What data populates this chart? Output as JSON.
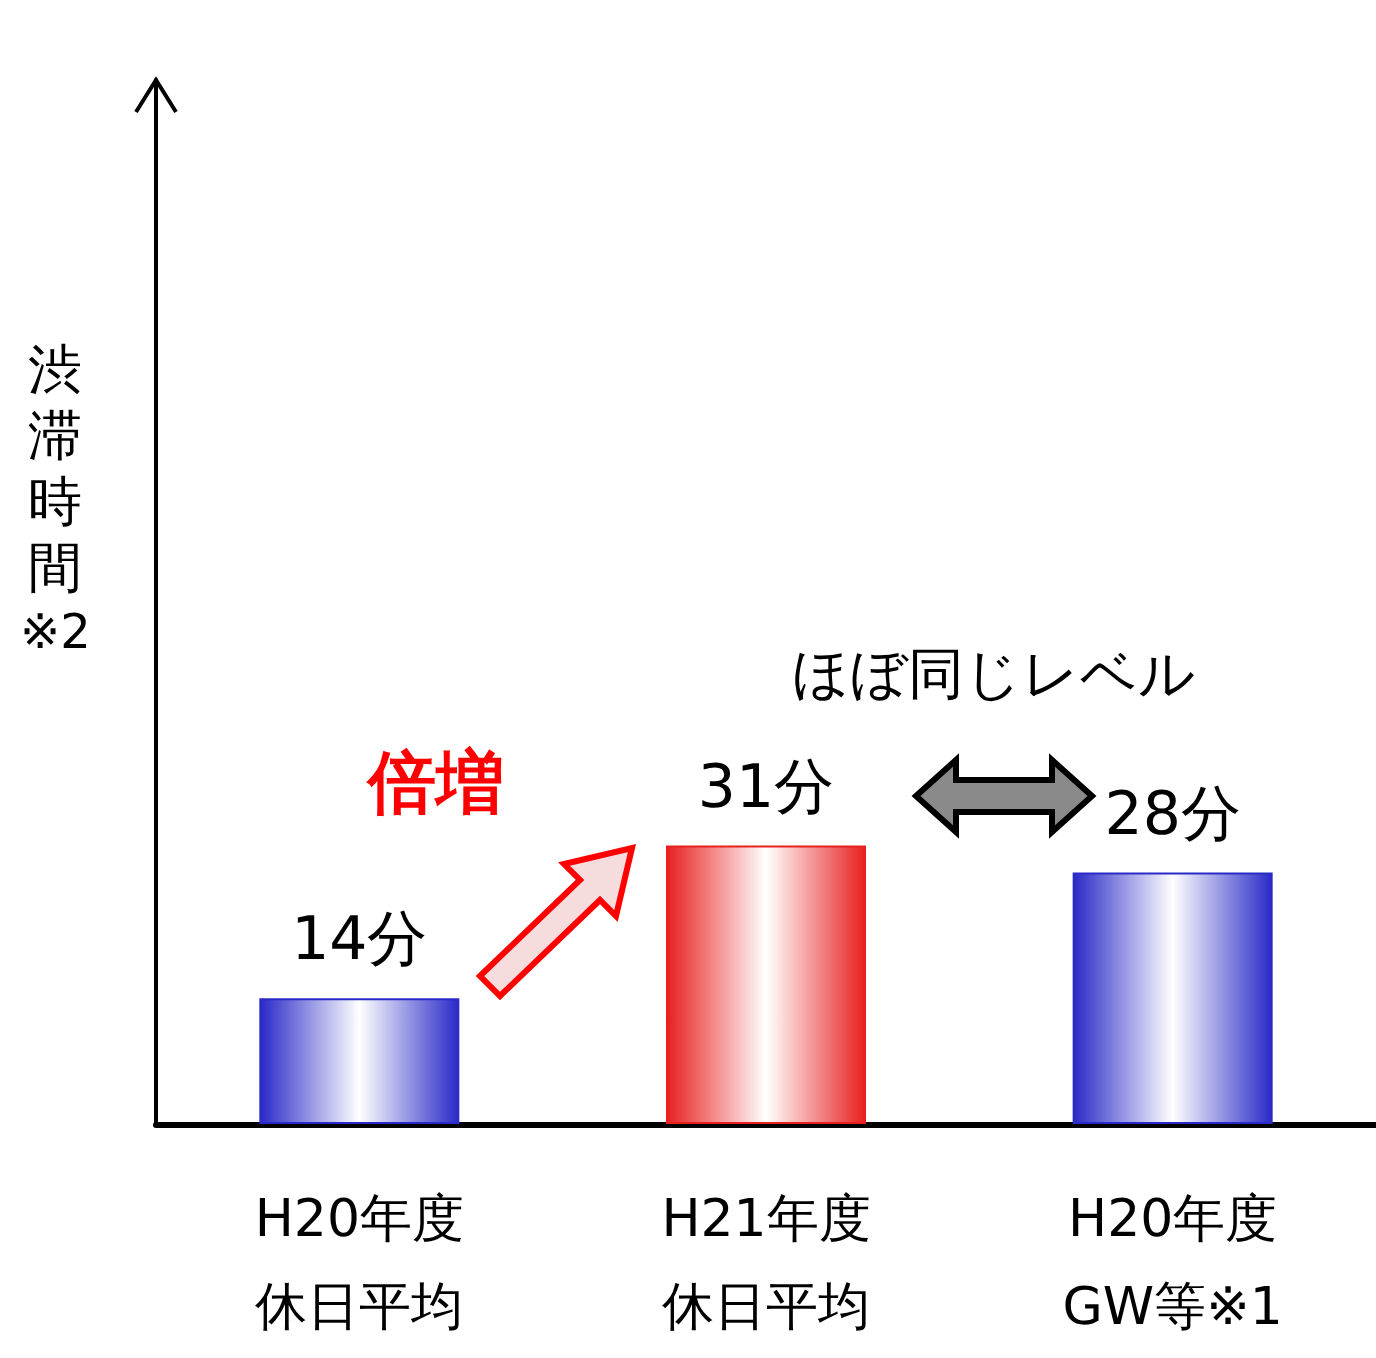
{
  "chart_data": {
    "type": "bar",
    "ylabel": "渋滞時間※2",
    "categories": [
      "H20年度休日平均",
      "H21年度休日平均",
      "H20年度GW等※1"
    ],
    "values": [
      14,
      31,
      28
    ],
    "colors": [
      "#2a2ac8",
      "#e82020",
      "#2a2ac8"
    ],
    "value_labels": [
      "14分",
      "31分",
      "28分"
    ],
    "annotations": [
      "倍増",
      "ほぼ同じレベル"
    ]
  }
}
